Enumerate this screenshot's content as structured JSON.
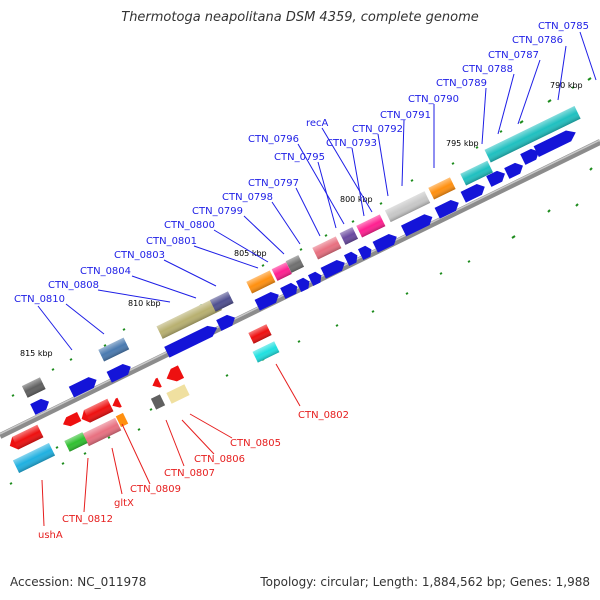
{
  "title": "Thermotoga neapolitana DSM 4359, complete genome",
  "footer": {
    "accession": "Accession: NC_011978",
    "info": "Topology: circular; Length: 1,884,562 bp; Genes: 1,988"
  },
  "colors": {
    "forward_label": "#1e1ee6",
    "reverse_label": "#e61e1e",
    "backbone": "#8c8c8c",
    "tick": "#1e8c1e"
  },
  "kbp_markers": [
    "790 kbp",
    "795 kbp",
    "800 kbp",
    "805 kbp",
    "810 kbp",
    "815 kbp"
  ],
  "forward_labels": [
    "CTN_0785",
    "CTN_0786",
    "CTN_0787",
    "CTN_0788",
    "CTN_0789",
    "CTN_0790",
    "CTN_0791",
    "CTN_0792",
    "recA",
    "CTN_0793",
    "CTN_0796",
    "CTN_0795",
    "CTN_0797",
    "CTN_0798",
    "CTN_0799",
    "CTN_0800",
    "CTN_0801",
    "CTN_0803",
    "CTN_0804",
    "CTN_0808",
    "CTN_0810"
  ],
  "reverse_labels": [
    "CTN_0802",
    "CTN_0805",
    "CTN_0806",
    "CTN_0807",
    "CTN_0809",
    "gltX",
    "CTN_0812",
    "ushA"
  ]
}
